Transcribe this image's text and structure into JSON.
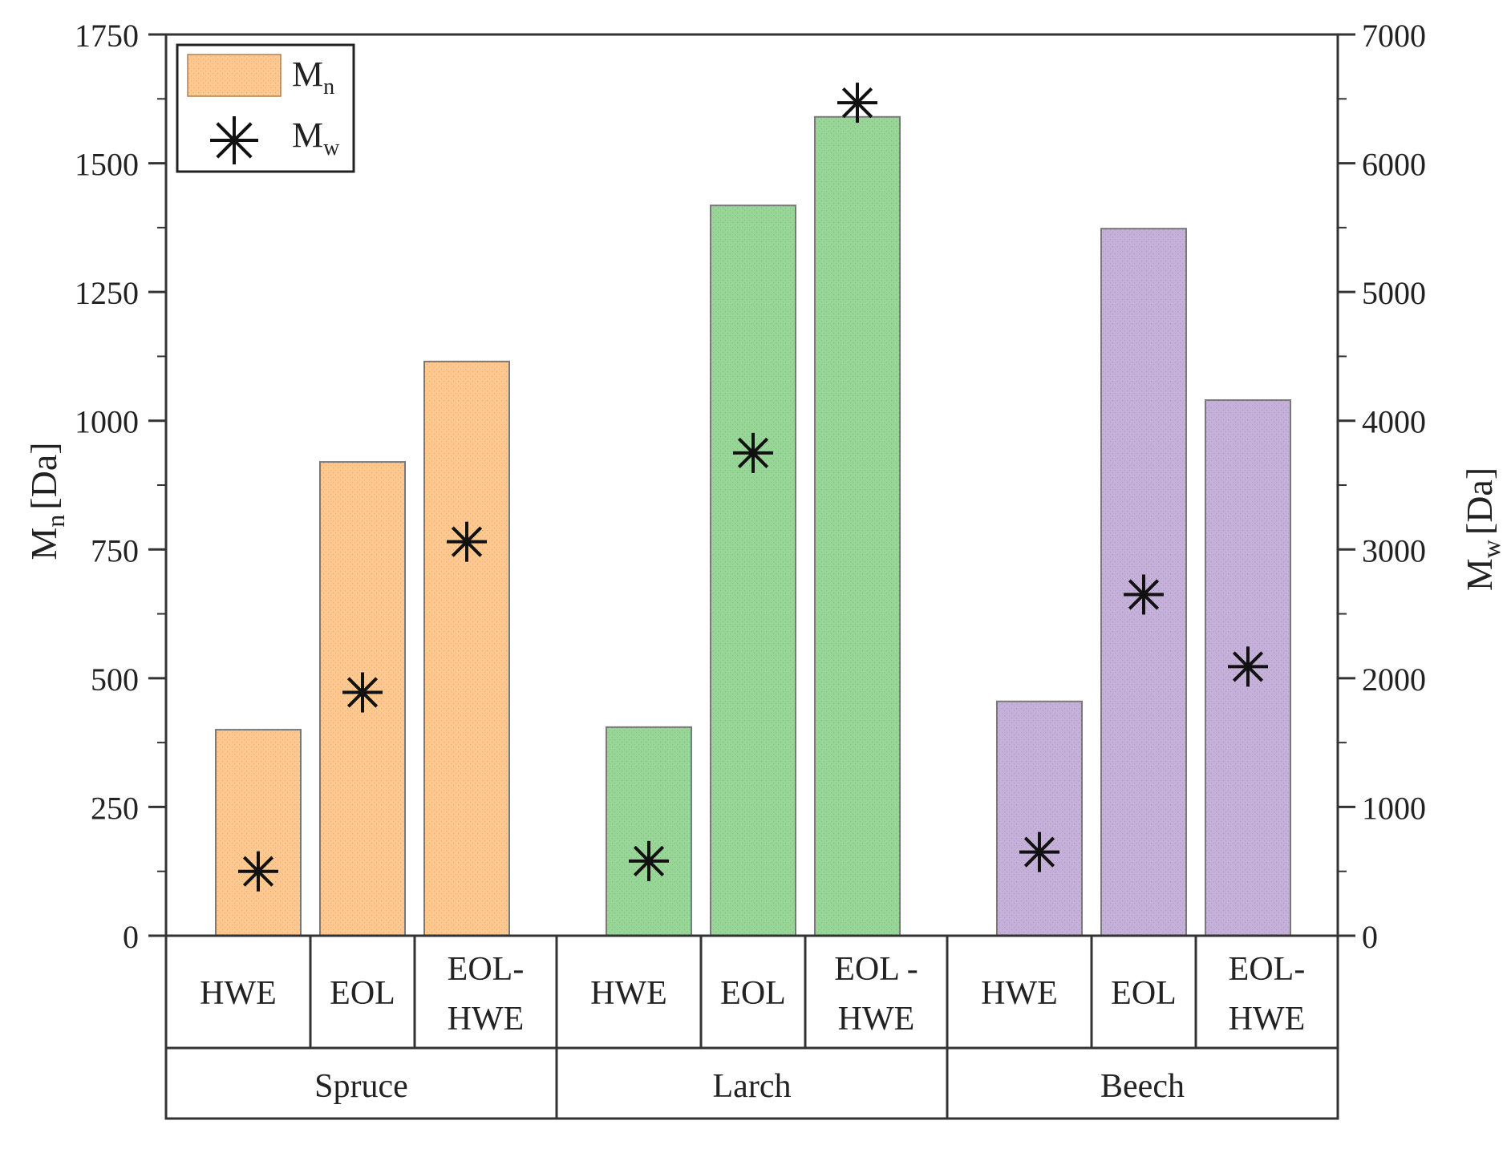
{
  "chart_data": {
    "type": "bar",
    "legend_position": "top-left",
    "groups": [
      {
        "name": "Spruce",
        "color": "#fec88e",
        "categories": [
          "HWE",
          "EOL",
          "EOL-HWE"
        ]
      },
      {
        "name": "Larch",
        "color": "#98d698",
        "categories": [
          "HWE",
          "EOL",
          "EOL - HWE"
        ]
      },
      {
        "name": "Beech",
        "color": "#c4b0d8",
        "categories": [
          "HWE",
          "EOL",
          "EOL-HWE"
        ]
      }
    ],
    "series": [
      {
        "name": "Mn",
        "name_main": "M",
        "name_sub": "n",
        "marker": "bar",
        "axis": "left",
        "values": [
          400,
          920,
          1115,
          405,
          1418,
          1590,
          455,
          1373,
          1040
        ]
      },
      {
        "name": "Mw",
        "name_main": "M",
        "name_sub": "w",
        "marker": "asterisk",
        "axis": "right",
        "values": [
          500,
          1890,
          3060,
          580,
          3750,
          6470,
          650,
          2650,
          2090
        ]
      }
    ],
    "left_axis": {
      "label_main": "M",
      "label_sub": "n",
      "label_unit": "[Da]",
      "ylim": [
        0,
        1750
      ],
      "ticks": [
        "0",
        "250",
        "500",
        "750",
        "1000",
        "1250",
        "1500",
        "1750"
      ]
    },
    "right_axis": {
      "label_main": "M",
      "label_sub": "w",
      "label_unit": "[Da]",
      "ylim": [
        0,
        7000
      ],
      "ticks": [
        "0",
        "1000",
        "2000",
        "3000",
        "4000",
        "5000",
        "6000",
        "7000"
      ]
    }
  }
}
